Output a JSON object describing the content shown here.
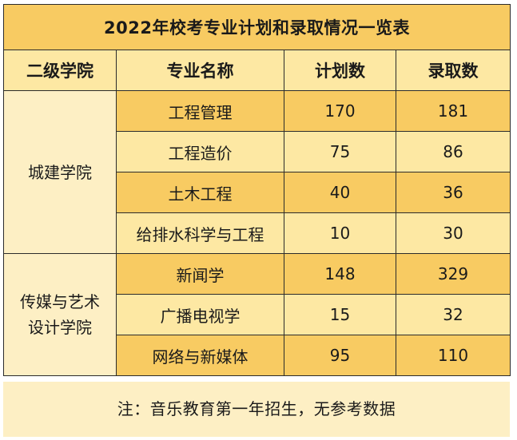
{
  "table": {
    "title": "2022年校考专业计划和录取情况一览表",
    "headers": [
      "二级学院",
      "专业名称",
      "计划数",
      "录取数"
    ],
    "groups": [
      {
        "department": "城建学院",
        "rows": [
          {
            "major": "工程管理",
            "plan": "170",
            "admitted": "181"
          },
          {
            "major": "工程造价",
            "plan": "75",
            "admitted": "86"
          },
          {
            "major": "土木工程",
            "plan": "40",
            "admitted": "36"
          },
          {
            "major": "给排水科学与工程",
            "plan": "10",
            "admitted": "30"
          }
        ]
      },
      {
        "department": "传媒与艺术设计学院",
        "department_lines": [
          "传媒与艺术",
          "设计学院"
        ],
        "rows": [
          {
            "major": "新闻学",
            "plan": "148",
            "admitted": "329"
          },
          {
            "major": "广播电视学",
            "plan": "15",
            "admitted": "32"
          },
          {
            "major": "网络与新媒体",
            "plan": "95",
            "admitted": "110"
          }
        ]
      }
    ]
  },
  "note": "注：音乐教育第一年招生，无参考数据",
  "colors": {
    "dark": "#f8cb62",
    "light": "#fde8a3",
    "pale": "#fdefc4",
    "border": "#2b2b2b"
  }
}
